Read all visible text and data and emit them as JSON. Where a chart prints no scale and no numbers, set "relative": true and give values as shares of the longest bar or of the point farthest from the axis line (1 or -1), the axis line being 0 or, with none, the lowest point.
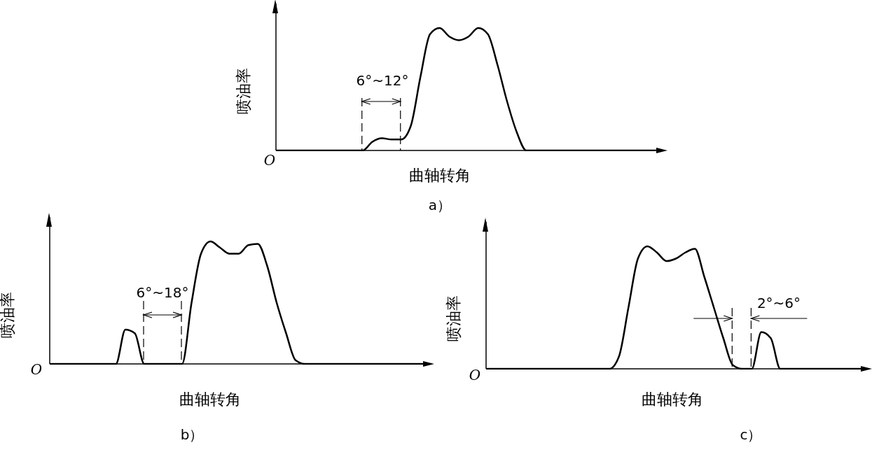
{
  "chart_data": [
    {
      "type": "line",
      "relative": true,
      "title": "a）",
      "xlabel": "曲轴转角",
      "ylabel": "喷油率",
      "annotations": [
        "O",
        "6°~12°"
      ],
      "categories": [
        null,
        null,
        null,
        null,
        null,
        null,
        null,
        null,
        null,
        null,
        null,
        null,
        null,
        null,
        null,
        null,
        null,
        null,
        null,
        null,
        null,
        null,
        null,
        null,
        null,
        null,
        null,
        null,
        null,
        null,
        null,
        null,
        null,
        null,
        null,
        null,
        null,
        null,
        null,
        null,
        null
      ],
      "series": [
        {
          "color": "#000000",
          "values": [
            0,
            0,
            0,
            0,
            0,
            0,
            0,
            0,
            0,
            0,
            0.07,
            0.1,
            0.09,
            0.09,
            0.2,
            0.6,
            0.95,
            1,
            0.93,
            0.9,
            0.93,
            1,
            0.95,
            0.7,
            0.4,
            0.15,
            0,
            0,
            0,
            0,
            0,
            0,
            0,
            0,
            0,
            0,
            0,
            0,
            0,
            0,
            0
          ]
        }
      ]
    },
    {
      "type": "line",
      "relative": true,
      "title": "b）",
      "xlabel": "曲轴转角",
      "ylabel": "喷油率",
      "annotations": [
        "O",
        "6°~18°"
      ],
      "categories": [
        null,
        null,
        null,
        null,
        null,
        null,
        null,
        null,
        null,
        null,
        null,
        null,
        null,
        null,
        null,
        null,
        null,
        null,
        null,
        null,
        null,
        null,
        null,
        null,
        null,
        null,
        null,
        null,
        null,
        null,
        null,
        null,
        null,
        null,
        null,
        null,
        null,
        null,
        null,
        null,
        null
      ],
      "series": [
        {
          "color": "#000000",
          "values": [
            0,
            0,
            0,
            0,
            0,
            0,
            0,
            0,
            0.28,
            0.25,
            0,
            0,
            0,
            0,
            0,
            0.5,
            0.9,
            1,
            0.95,
            0.9,
            0.9,
            0.97,
            0.98,
            0.8,
            0.5,
            0.25,
            0.03,
            0,
            0,
            0,
            0,
            0,
            0,
            0,
            0,
            0,
            0,
            0,
            0,
            0,
            0
          ]
        }
      ]
    },
    {
      "type": "line",
      "relative": true,
      "title": "c）",
      "xlabel": "曲轴转角",
      "ylabel": "喷油率",
      "annotations": [
        "O",
        "2°~6°"
      ],
      "categories": [
        null,
        null,
        null,
        null,
        null,
        null,
        null,
        null,
        null,
        null,
        null,
        null,
        null,
        null,
        null,
        null,
        null,
        null,
        null,
        null,
        null,
        null,
        null,
        null,
        null,
        null,
        null,
        null,
        null,
        null,
        null,
        null,
        null,
        null,
        null,
        null,
        null,
        null,
        null,
        null,
        null
      ],
      "series": [
        {
          "color": "#000000",
          "values": [
            0,
            0,
            0,
            0,
            0,
            0,
            0,
            0,
            0,
            0,
            0,
            0,
            0,
            0,
            0.1,
            0.5,
            0.9,
            1,
            0.95,
            0.88,
            0.9,
            0.95,
            0.98,
            0.75,
            0.5,
            0.25,
            0.03,
            0,
            0,
            0.3,
            0.25,
            0,
            0,
            0,
            0,
            0,
            0,
            0,
            0,
            0,
            0
          ]
        }
      ]
    }
  ]
}
